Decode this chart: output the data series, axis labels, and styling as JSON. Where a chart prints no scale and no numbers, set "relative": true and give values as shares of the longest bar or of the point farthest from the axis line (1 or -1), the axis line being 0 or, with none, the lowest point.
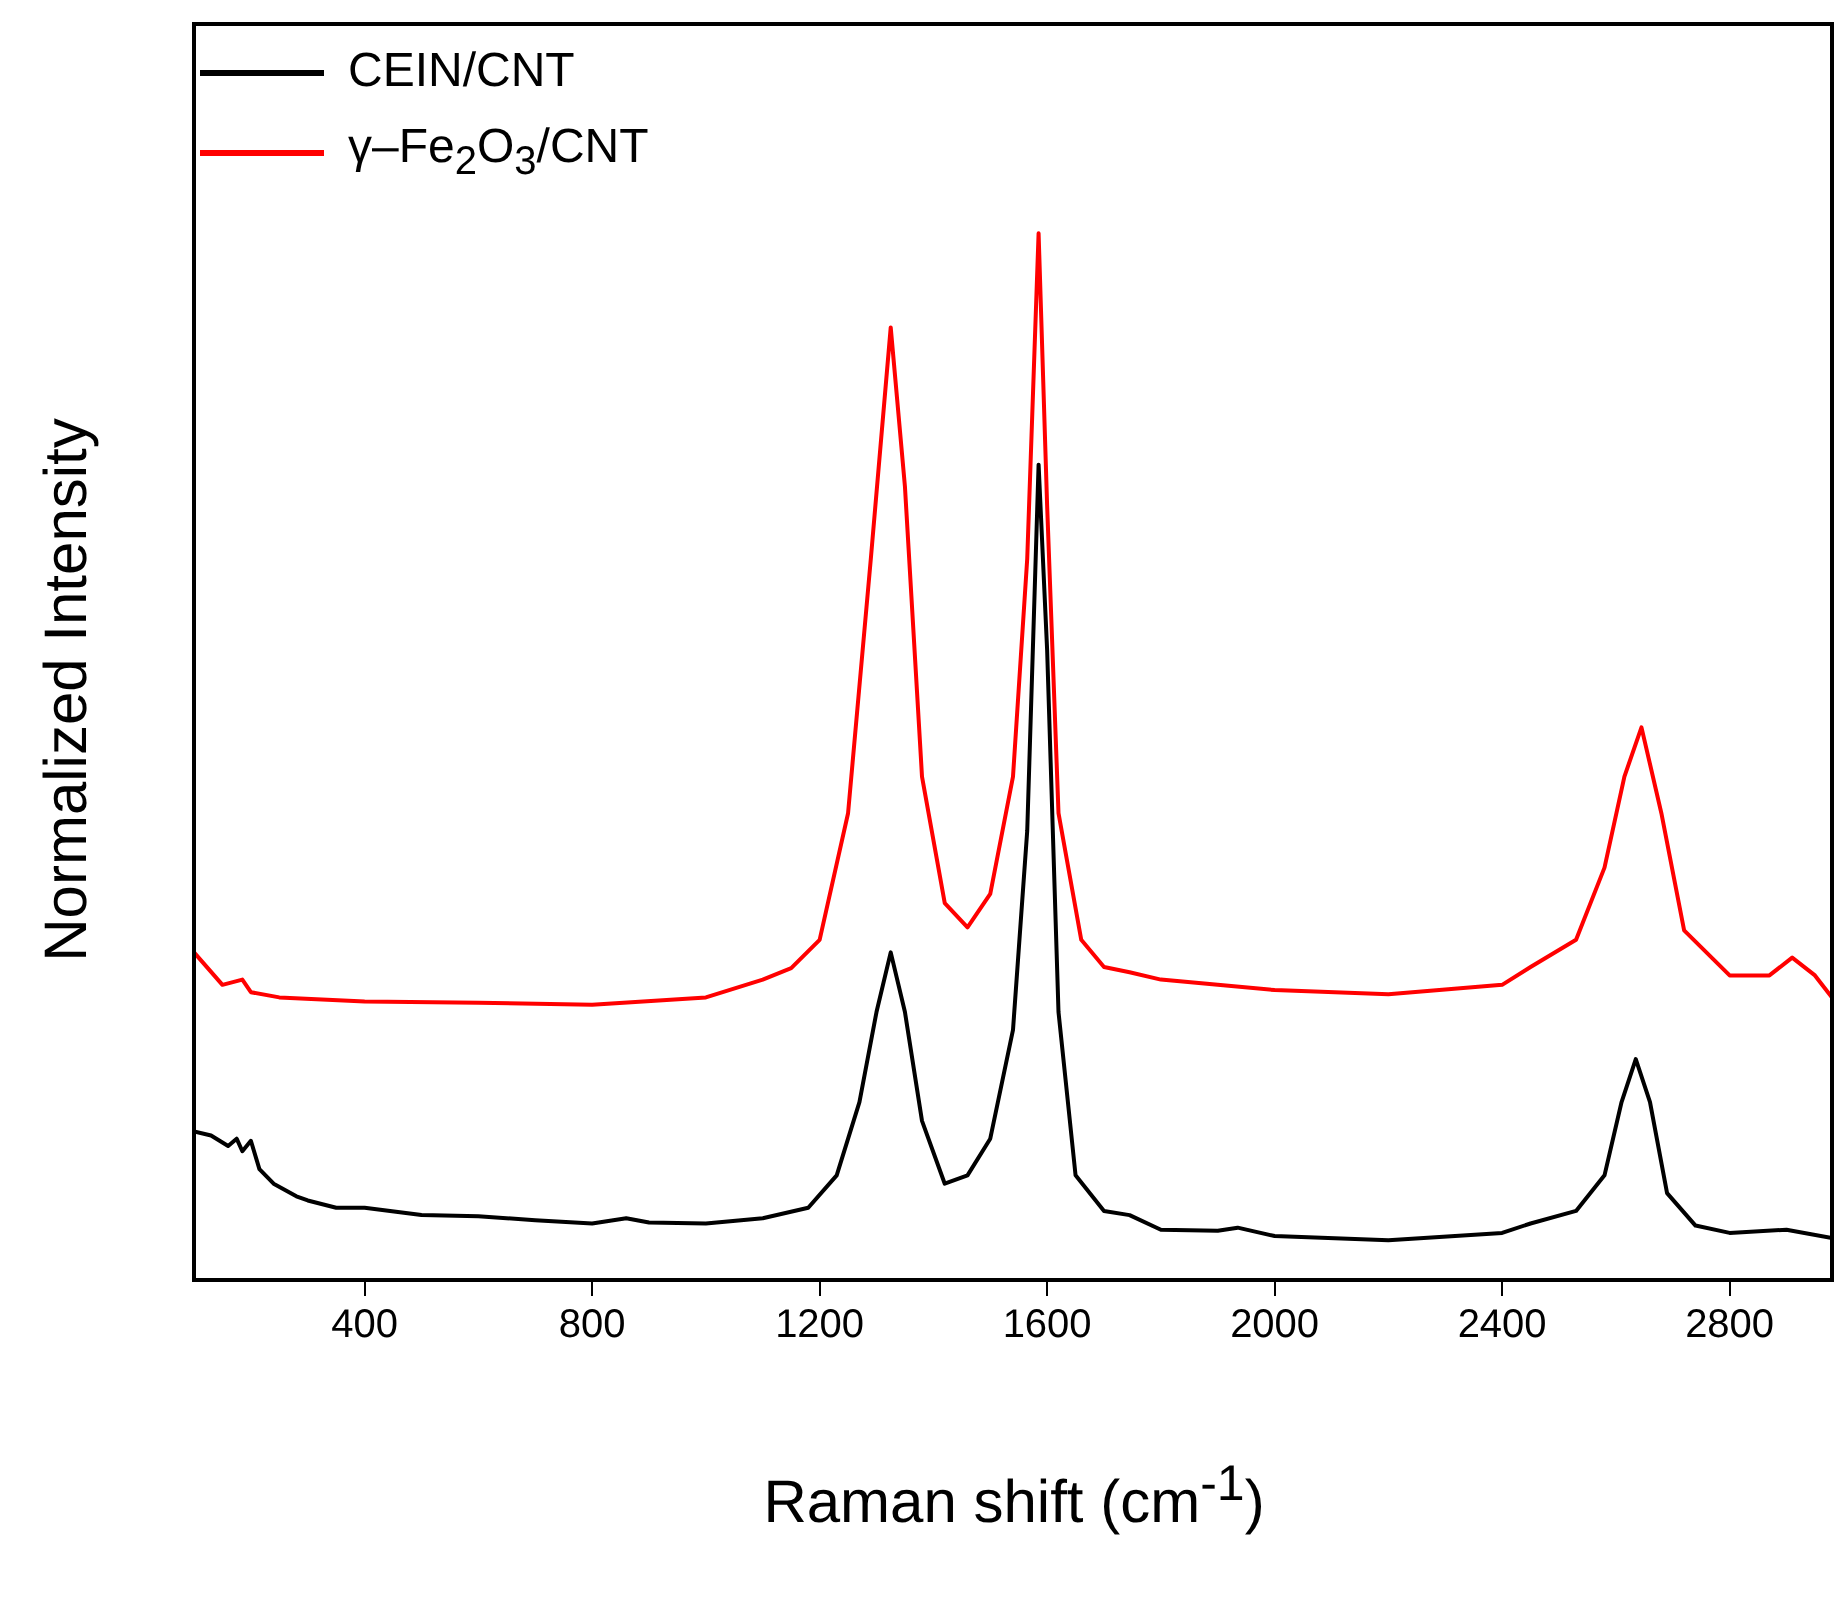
{
  "chart_data": {
    "type": "line",
    "relative": true,
    "xlabel": "Raman shift (cm$^{-1}$)",
    "ylabel": "Normalized Intensity",
    "xlim": [
      100,
      2980
    ],
    "xticks": [
      400,
      800,
      1200,
      1600,
      2000,
      2400,
      2800
    ],
    "legend": "top left",
    "grid": false,
    "marker": "none",
    "line_style": "solid",
    "tick_labels": "x",
    "series": [
      {
        "name": "CEIN/CNT",
        "color": "#000000",
        "x": [
          100,
          130,
          160,
          175,
          185,
          200,
          215,
          240,
          280,
          300,
          350,
          400,
          500,
          600,
          700,
          800,
          860,
          900,
          1000,
          1100,
          1180,
          1230,
          1270,
          1300,
          1325,
          1350,
          1380,
          1420,
          1460,
          1500,
          1540,
          1565,
          1585,
          1600,
          1620,
          1650,
          1700,
          1745,
          1800,
          1900,
          1935,
          2000,
          2200,
          2400,
          2450,
          2530,
          2580,
          2610,
          2635,
          2660,
          2690,
          2740,
          2800,
          2900,
          2980
        ],
        "values": [
          0.142,
          0.138,
          0.128,
          0.135,
          0.123,
          0.133,
          0.106,
          0.092,
          0.08,
          0.076,
          0.069,
          0.069,
          0.062,
          0.061,
          0.057,
          0.054,
          0.059,
          0.055,
          0.054,
          0.059,
          0.069,
          0.1,
          0.17,
          0.256,
          0.313,
          0.256,
          0.152,
          0.092,
          0.1,
          0.135,
          0.239,
          0.429,
          0.779,
          0.602,
          0.256,
          0.1,
          0.066,
          0.062,
          0.048,
          0.047,
          0.05,
          0.042,
          0.038,
          0.045,
          0.054,
          0.066,
          0.1,
          0.17,
          0.211,
          0.17,
          0.083,
          0.052,
          0.045,
          0.048,
          0.04
        ]
      },
      {
        "name": "γ–Fe$_{2}$O$_{3}$/CNT",
        "color": "#ff0000",
        "x": [
          100,
          150,
          185,
          200,
          250,
          400,
          600,
          800,
          1000,
          1100,
          1150,
          1200,
          1250,
          1290,
          1325,
          1350,
          1380,
          1420,
          1460,
          1500,
          1540,
          1565,
          1585,
          1600,
          1620,
          1660,
          1700,
          1745,
          1800,
          1900,
          2000,
          2200,
          2400,
          2450,
          2530,
          2580,
          2615,
          2645,
          2680,
          2720,
          2800,
          2870,
          2910,
          2950,
          2980
        ],
        "values": [
          0.313,
          0.282,
          0.287,
          0.275,
          0.27,
          0.266,
          0.265,
          0.263,
          0.27,
          0.287,
          0.298,
          0.325,
          0.446,
          0.689,
          0.91,
          0.758,
          0.481,
          0.36,
          0.337,
          0.369,
          0.481,
          0.689,
          1.0,
          0.74,
          0.446,
          0.325,
          0.299,
          0.294,
          0.287,
          0.282,
          0.277,
          0.273,
          0.282,
          0.299,
          0.325,
          0.394,
          0.481,
          0.528,
          0.446,
          0.334,
          0.291,
          0.291,
          0.308,
          0.291,
          0.27
        ]
      }
    ]
  }
}
